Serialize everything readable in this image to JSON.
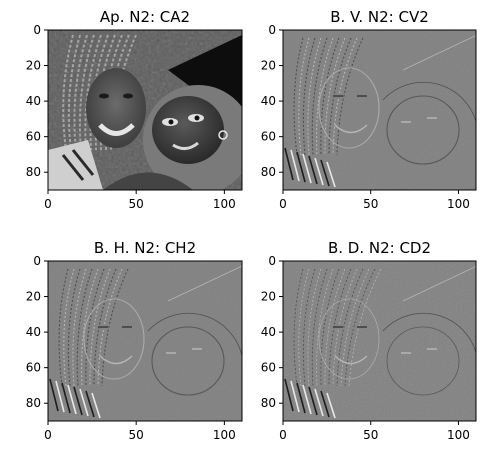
{
  "chart_data": [
    {
      "type": "image",
      "title": "Ap. N2: CA2",
      "content": "approximation coefficients (grayscale photo)",
      "xlim": [
        0,
        110
      ],
      "ylim": [
        90,
        0
      ],
      "xticks": [
        "0",
        "50",
        "100"
      ],
      "yticks": [
        "0",
        "20",
        "40",
        "60",
        "80"
      ],
      "colormap": "gray"
    },
    {
      "type": "image",
      "title": "B. V. N2: CV2",
      "content": "vertical detail coefficients",
      "xlim": [
        0,
        110
      ],
      "ylim": [
        90,
        0
      ],
      "xticks": [
        "0",
        "50",
        "100"
      ],
      "yticks": [
        "0",
        "20",
        "40",
        "60",
        "80"
      ],
      "colormap": "gray"
    },
    {
      "type": "image",
      "title": "B. H. N2: CH2",
      "content": "horizontal detail coefficients",
      "xlim": [
        0,
        110
      ],
      "ylim": [
        90,
        0
      ],
      "xticks": [
        "0",
        "50",
        "100"
      ],
      "yticks": [
        "0",
        "20",
        "40",
        "60",
        "80"
      ],
      "colormap": "gray"
    },
    {
      "type": "image",
      "title": "B. D. N2: CD2",
      "content": "diagonal detail coefficients",
      "xlim": [
        0,
        110
      ],
      "ylim": [
        90,
        0
      ],
      "xticks": [
        "0",
        "50",
        "100"
      ],
      "yticks": [
        "0",
        "20",
        "40",
        "60",
        "80"
      ],
      "colormap": "gray"
    }
  ]
}
